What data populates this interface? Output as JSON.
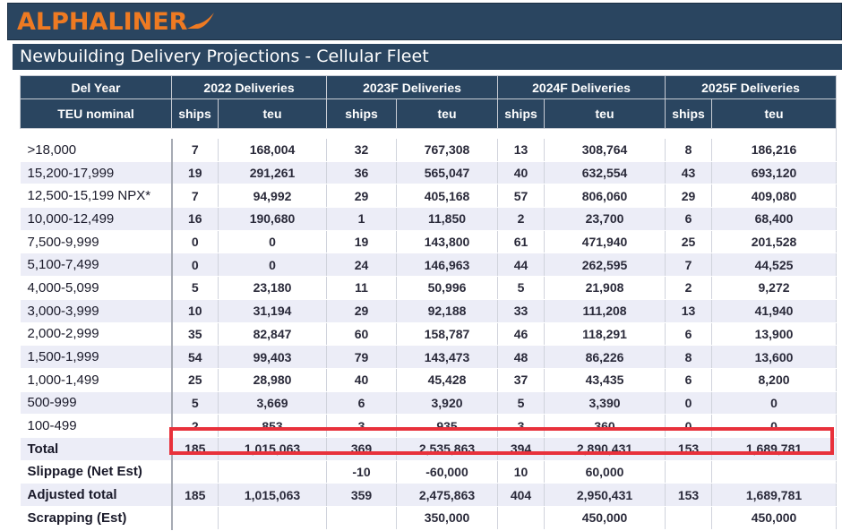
{
  "brand": {
    "logo_text": "ALPHALINER",
    "accent": "#ee7a22",
    "header_bg": "#2a4560"
  },
  "title": "Newbuilding Delivery Projections - Cellular Fleet",
  "table": {
    "header_row1": [
      "Del Year",
      "2022 Deliveries",
      "2023F Deliveries",
      "2024F Deliveries",
      "2025F Deliveries"
    ],
    "header_row2": [
      "TEU nominal",
      "ships",
      "teu",
      "ships",
      "teu",
      "ships",
      "teu",
      "ships",
      "teu"
    ],
    "rows": [
      {
        "label": ">18,000",
        "cells": [
          "7",
          "168,004",
          "32",
          "767,308",
          "13",
          "308,764",
          "8",
          "186,216"
        ]
      },
      {
        "label": "15,200-17,999",
        "cells": [
          "19",
          "291,261",
          "36",
          "565,047",
          "40",
          "632,554",
          "43",
          "693,120"
        ]
      },
      {
        "label": "12,500-15,199 NPX*",
        "cells": [
          "7",
          "94,992",
          "29",
          "405,168",
          "57",
          "806,060",
          "29",
          "409,080"
        ]
      },
      {
        "label": "10,000-12,499",
        "cells": [
          "16",
          "190,680",
          "1",
          "11,850",
          "2",
          "23,700",
          "6",
          "68,400"
        ]
      },
      {
        "label": "7,500-9,999",
        "cells": [
          "0",
          "0",
          "19",
          "143,800",
          "61",
          "471,940",
          "25",
          "201,528"
        ]
      },
      {
        "label": "5,100-7,499",
        "cells": [
          "0",
          "0",
          "24",
          "146,963",
          "44",
          "262,595",
          "7",
          "44,525"
        ]
      },
      {
        "label": "4,000-5,099",
        "cells": [
          "5",
          "23,180",
          "11",
          "50,996",
          "5",
          "21,908",
          "2",
          "9,272"
        ]
      },
      {
        "label": "3,000-3,999",
        "cells": [
          "10",
          "31,194",
          "29",
          "92,188",
          "33",
          "111,208",
          "13",
          "41,940"
        ]
      },
      {
        "label": "2,000-2,999",
        "cells": [
          "35",
          "82,847",
          "60",
          "158,787",
          "46",
          "118,291",
          "6",
          "13,900"
        ]
      },
      {
        "label": "1,500-1,999",
        "cells": [
          "54",
          "99,403",
          "79",
          "143,473",
          "48",
          "86,226",
          "8",
          "13,600"
        ]
      },
      {
        "label": "1,000-1,499",
        "cells": [
          "25",
          "28,980",
          "40",
          "45,428",
          "37",
          "43,435",
          "6",
          "8,200"
        ]
      },
      {
        "label": "500-999",
        "cells": [
          "5",
          "3,669",
          "6",
          "3,920",
          "5",
          "3,390",
          "0",
          "0"
        ]
      },
      {
        "label": "100-499",
        "cells": [
          "2",
          "853",
          "3",
          "935",
          "3",
          "360",
          "0",
          "0"
        ]
      }
    ],
    "total": {
      "label": "Total",
      "cells": [
        "185",
        "1,015,063",
        "369",
        "2,535,863",
        "394",
        "2,890,431",
        "153",
        "1,689,781"
      ]
    },
    "slippage": {
      "label": "Slippage (Net Est)",
      "cells": [
        "",
        "",
        "-10",
        "-60,000",
        "10",
        "60,000",
        "",
        ""
      ]
    },
    "adjusted": {
      "label": "Adjusted total",
      "cells": [
        "185",
        "1,015,063",
        "359",
        "2,475,863",
        "404",
        "2,950,431",
        "153",
        "1,689,781"
      ]
    },
    "scrapping": {
      "label": "Scrapping (Est)",
      "cells": [
        "",
        "",
        "",
        "350,000",
        "",
        "450,000",
        "",
        "450,000"
      ]
    }
  },
  "highlight_color": "#e8313b"
}
